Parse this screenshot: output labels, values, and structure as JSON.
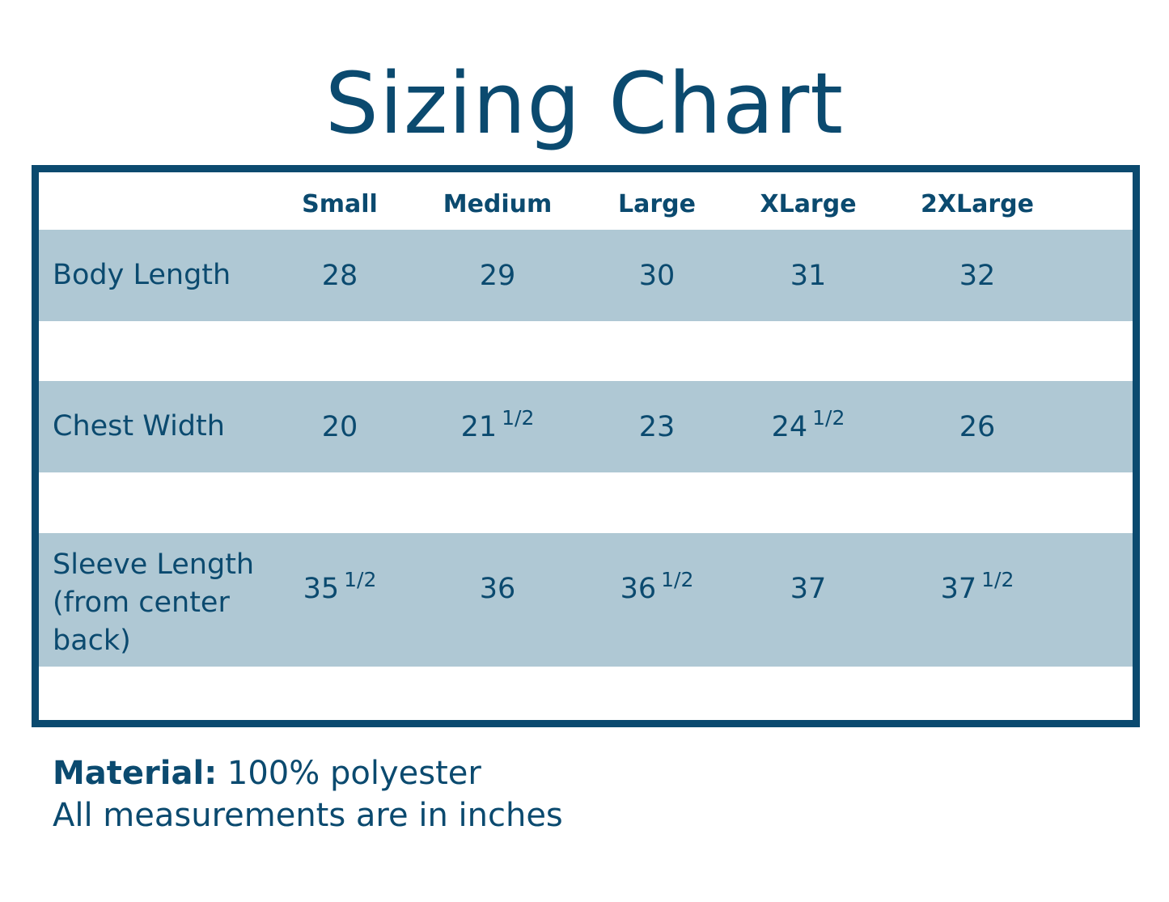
{
  "title": "Sizing Chart",
  "table": {
    "columns": [
      "Small",
      "Medium",
      "Large",
      "XLarge",
      "2XLarge"
    ],
    "rows": [
      {
        "label": "Body Length",
        "values": [
          {
            "whole": "28",
            "frac": ""
          },
          {
            "whole": "29",
            "frac": ""
          },
          {
            "whole": "30",
            "frac": ""
          },
          {
            "whole": "31",
            "frac": ""
          },
          {
            "whole": "32",
            "frac": ""
          }
        ]
      },
      {
        "label": "Chest Width",
        "values": [
          {
            "whole": "20",
            "frac": ""
          },
          {
            "whole": "21",
            "frac": "1/2"
          },
          {
            "whole": "23",
            "frac": ""
          },
          {
            "whole": "24",
            "frac": "1/2"
          },
          {
            "whole": "26",
            "frac": ""
          }
        ]
      },
      {
        "label": "Sleeve Length (from center back)",
        "label_lines": [
          "Sleeve Length",
          "(from center",
          "back)"
        ],
        "values": [
          {
            "whole": "35",
            "frac": "1/2"
          },
          {
            "whole": "36",
            "frac": ""
          },
          {
            "whole": "36",
            "frac": "1/2"
          },
          {
            "whole": "37",
            "frac": ""
          },
          {
            "whole": "37",
            "frac": "1/2"
          }
        ]
      }
    ]
  },
  "footer": {
    "material_label": "Material:",
    "material_value": "100% polyester",
    "note": "All measurements are in inches"
  },
  "colors": {
    "primary": "#0b4a6f",
    "band": "#afc8d4"
  }
}
